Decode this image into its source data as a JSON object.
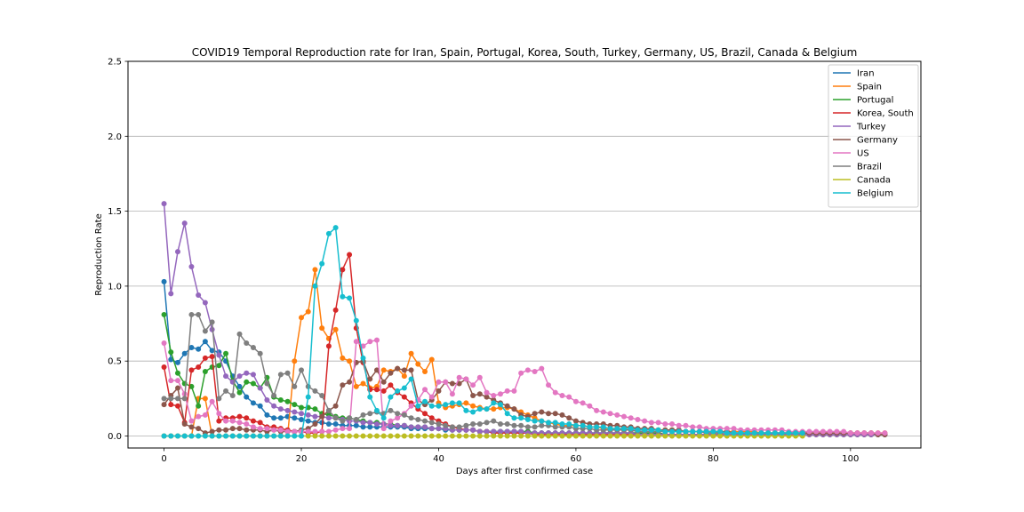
{
  "chart_data": {
    "type": "line",
    "title": "COVID19 Temporal Reproduction rate for Iran, Spain, Portugal, Korea, South, Turkey, Germany, US, Brazil, Canada & Belgium",
    "xlabel": "Days after first confirmed case",
    "ylabel": "Reproduction Rate",
    "xlim": [
      -5.25,
      110.25
    ],
    "ylim": [
      -0.08,
      2.5
    ],
    "xticks": [
      0,
      20,
      40,
      60,
      80,
      100
    ],
    "yticks": [
      0.0,
      0.5,
      1.0,
      1.5,
      2.0,
      2.5
    ],
    "xtick_labels": [
      "0",
      "20",
      "40",
      "60",
      "80",
      "100"
    ],
    "ytick_labels": [
      "0.0",
      "0.5",
      "1.0",
      "1.5",
      "2.0",
      "2.5"
    ],
    "grid": "horizontal",
    "legend_position": "top-right",
    "series": [
      {
        "name": "Iran",
        "color": "#1f77b4",
        "values": [
          1.03,
          0.51,
          0.49,
          0.55,
          0.59,
          0.58,
          0.63,
          0.57,
          0.56,
          0.5,
          0.4,
          0.33,
          0.26,
          0.22,
          0.2,
          0.14,
          0.12,
          0.12,
          0.13,
          0.12,
          0.11,
          0.1,
          0.09,
          0.09,
          0.08,
          0.08,
          0.07,
          0.07,
          0.07,
          0.06,
          0.06,
          0.06,
          0.06,
          0.06,
          0.06,
          0.06,
          0.05,
          0.05,
          0.05,
          0.05,
          0.05,
          0.04,
          0.04,
          0.04,
          0.04,
          0.04,
          0.03,
          0.03,
          0.03,
          0.03,
          0.03,
          0.03,
          0.03,
          0.03,
          0.02,
          0.02,
          0.02,
          0.02,
          0.02,
          0.02,
          0.02,
          0.02,
          0.02,
          0.02,
          0.02,
          0.02,
          0.02,
          0.02,
          0.02,
          0.02,
          0.02,
          0.02,
          0.02,
          0.01,
          0.01,
          0.01,
          0.01,
          0.01,
          0.01,
          0.01,
          0.01,
          0.01,
          0.01,
          0.01,
          0.01,
          0.01,
          0.01,
          0.01,
          0.01,
          0.01,
          0.01,
          0.01,
          0.01,
          0.01,
          0.01,
          0.01,
          0.01,
          0.01,
          0.01,
          0.01,
          0.01,
          0.01,
          0.01,
          0.01,
          0.01,
          0.01
        ]
      },
      {
        "name": "Spain",
        "color": "#ff7f0e",
        "values": [
          0,
          0,
          0,
          0,
          0,
          0.25,
          0.25,
          0.0,
          0.0,
          0.0,
          0.0,
          0.0,
          0.0,
          0.0,
          0.0,
          0.0,
          0.0,
          0.0,
          0.0,
          0.5,
          0.79,
          0.83,
          1.11,
          0.72,
          0.65,
          0.71,
          0.52,
          0.5,
          0.33,
          0.35,
          0.32,
          0.33,
          0.44,
          0.43,
          0.45,
          0.4,
          0.55,
          0.48,
          0.43,
          0.51,
          0.22,
          0.19,
          0.2,
          0.21,
          0.22,
          0.2,
          0.19,
          0.18,
          0.18,
          0.19,
          0.19,
          0.18,
          0.16,
          0.14,
          0.12,
          0.1,
          0.09,
          0.08,
          0.07,
          0.07,
          0.07,
          0.07,
          0.06,
          0.06,
          0.05,
          0.05,
          0.05,
          0.05,
          0.05,
          0.04,
          0.04,
          0.04,
          0.04,
          0.04,
          0.04,
          0.03,
          0.03,
          0.03,
          0.03,
          0.03,
          0.03,
          0.03,
          0.03,
          0.03,
          0.03,
          0.03,
          0.03,
          0.02,
          0.02,
          0.02,
          0.02,
          0.02,
          0.02,
          0.02,
          0.02,
          0.02,
          0.02,
          0.02,
          0.02,
          0.02,
          0.02,
          0.02,
          0.02,
          0.02,
          0.02,
          0.02
        ]
      },
      {
        "name": "Portugal",
        "color": "#2ca02c",
        "values": [
          0.81,
          0.56,
          0.42,
          0.35,
          0.33,
          0.2,
          0.43,
          0.46,
          0.47,
          0.55,
          0.37,
          0.29,
          0.36,
          0.35,
          0.32,
          0.39,
          0.26,
          0.24,
          0.23,
          0.21,
          0.19,
          0.19,
          0.18,
          0.15,
          0.14,
          0.13,
          0.12,
          0.12,
          0.11,
          0.1,
          0.09,
          0.09,
          0.08,
          0.08,
          0.07,
          0.07,
          0.06,
          0.06,
          0.06,
          0.05,
          0.05,
          0.05,
          0.04,
          0.04,
          0.04,
          0.04,
          0.03,
          0.03,
          0.03,
          0.03,
          0.03,
          0.03,
          0.03,
          0.03,
          0.02,
          0.02,
          0.02,
          0.02,
          0.02,
          0.02,
          0.02,
          0.02,
          0.02,
          0.02,
          0.02,
          0.02,
          0.02,
          0.02,
          0.02,
          0.02,
          0.02,
          0.02,
          0.02,
          0.01,
          0.01,
          0.01,
          0.01,
          0.01,
          0.01,
          0.01,
          0.01,
          0.01,
          0.01,
          0.01,
          0.01,
          0.01,
          0.01,
          0.01,
          0.01,
          0.01,
          0.01,
          0.01,
          0.01,
          0.01,
          0.01,
          0.01,
          0.01,
          0.01,
          0.01,
          0.01,
          0.01,
          0.01,
          0.01,
          0.01,
          0.01,
          0.01
        ]
      },
      {
        "name": "Korea, South",
        "color": "#d62728",
        "values": [
          0.46,
          0.21,
          0.2,
          0.09,
          0.44,
          0.46,
          0.52,
          0.53,
          0.1,
          0.12,
          0.12,
          0.13,
          0.12,
          0.1,
          0.09,
          0.06,
          0.06,
          0.05,
          0.04,
          0.03,
          0.03,
          0.02,
          0.02,
          0.03,
          0.6,
          0.84,
          1.11,
          1.21,
          0.72,
          0.49,
          0.31,
          0.31,
          0.3,
          0.34,
          0.29,
          0.26,
          0.22,
          0.18,
          0.15,
          0.12,
          0.1,
          0.08,
          0.06,
          0.05,
          0.04,
          0.04,
          0.03,
          0.03,
          0.02,
          0.02,
          0.02,
          0.02,
          0.02,
          0.02,
          0.01,
          0.01,
          0.01,
          0.01,
          0.01,
          0.01,
          0.01,
          0.01,
          0.01,
          0.01,
          0.01,
          0.01,
          0.01,
          0.01,
          0.01,
          0.01,
          0.01,
          0.01,
          0.01,
          0.01,
          0.01,
          0.01,
          0.01,
          0.01,
          0.01,
          0.01,
          0.01,
          0.01,
          0.01,
          0.01,
          0.01,
          0.01,
          0.01,
          0.01,
          0.01,
          0.01,
          0.01,
          0.01,
          0.01,
          0.01,
          0.01,
          0.01,
          0.01,
          0.01,
          0.01,
          0.01,
          0.01,
          0.01,
          0.01,
          0.01,
          0.01,
          0.01
        ]
      },
      {
        "name": "Turkey",
        "color": "#9467bd",
        "values": [
          1.55,
          0.95,
          1.23,
          1.42,
          1.13,
          0.94,
          0.89,
          0.71,
          0.54,
          0.4,
          0.36,
          0.4,
          0.42,
          0.41,
          0.32,
          0.24,
          0.2,
          0.18,
          0.17,
          0.16,
          0.15,
          0.14,
          0.13,
          0.13,
          0.12,
          0.12,
          0.11,
          0.1,
          0.1,
          0.09,
          0.09,
          0.08,
          0.08,
          0.07,
          0.07,
          0.07,
          0.06,
          0.06,
          0.06,
          0.05,
          0.05,
          0.05,
          0.04,
          0.04,
          0.04,
          0.04,
          0.03,
          0.03,
          0.03,
          0.03,
          0.03,
          0.03,
          0.03,
          0.02,
          0.02,
          0.02,
          0.02,
          0.02,
          0.02,
          0.02,
          0.02,
          0.02,
          0.02,
          0.02,
          0.02,
          0.02,
          0.02,
          0.02,
          0.02,
          0.01,
          0.01,
          0.01,
          0.01,
          0.01,
          0.01,
          0.01,
          0.01,
          0.01,
          0.01,
          0.01,
          0.01,
          0.01,
          0.01,
          0.01,
          0.01,
          0.01,
          0.01,
          0.01,
          0.01,
          0.01,
          0.01,
          0.01,
          0.01,
          0.01,
          0.01,
          0.01,
          0.01,
          0.01,
          0.01,
          0.01,
          0.01,
          0.01,
          0.01,
          0.01,
          0.01,
          0.01
        ]
      },
      {
        "name": "Germany",
        "color": "#8c564b",
        "values": [
          0.21,
          0.27,
          0.32,
          0.08,
          0.06,
          0.05,
          0.02,
          0.03,
          0.04,
          0.04,
          0.05,
          0.05,
          0.04,
          0.04,
          0.04,
          0.03,
          0.04,
          0.03,
          0.03,
          0.03,
          0.04,
          0.05,
          0.08,
          0.13,
          0.17,
          0.2,
          0.34,
          0.36,
          0.49,
          0.5,
          0.38,
          0.44,
          0.36,
          0.42,
          0.45,
          0.44,
          0.44,
          0.24,
          0.21,
          0.24,
          0.3,
          0.36,
          0.35,
          0.35,
          0.38,
          0.27,
          0.28,
          0.26,
          0.24,
          0.22,
          0.2,
          0.18,
          0.14,
          0.13,
          0.15,
          0.16,
          0.15,
          0.15,
          0.14,
          0.12,
          0.1,
          0.09,
          0.08,
          0.08,
          0.08,
          0.07,
          0.07,
          0.06,
          0.06,
          0.05,
          0.05,
          0.05,
          0.04,
          0.04,
          0.04,
          0.04,
          0.03,
          0.03,
          0.03,
          0.03,
          0.03,
          0.03,
          0.03,
          0.02,
          0.02,
          0.02,
          0.02,
          0.02,
          0.02,
          0.02,
          0.02,
          0.02,
          0.02,
          0.02,
          0.02,
          0.02,
          0.02,
          0.02,
          0.02,
          0.02,
          0.02,
          0.02,
          0.02,
          0.02,
          0.01,
          0.01
        ]
      },
      {
        "name": "US",
        "color": "#e377c2",
        "values": [
          0.62,
          0.37,
          0.37,
          0.28,
          0.1,
          0.13,
          0.14,
          0.23,
          0.15,
          0.1,
          0.1,
          0.09,
          0.08,
          0.06,
          0.05,
          0.05,
          0.04,
          0.04,
          0.03,
          0.03,
          0.03,
          0.03,
          0.03,
          0.03,
          0.03,
          0.04,
          0.05,
          0.05,
          0.63,
          0.6,
          0.63,
          0.64,
          0.05,
          0.1,
          0.12,
          0.15,
          0.2,
          0.24,
          0.31,
          0.26,
          0.36,
          0.36,
          0.28,
          0.39,
          0.38,
          0.34,
          0.39,
          0.29,
          0.27,
          0.28,
          0.3,
          0.3,
          0.42,
          0.44,
          0.43,
          0.45,
          0.34,
          0.29,
          0.27,
          0.26,
          0.23,
          0.22,
          0.2,
          0.17,
          0.16,
          0.15,
          0.14,
          0.13,
          0.12,
          0.11,
          0.1,
          0.09,
          0.09,
          0.08,
          0.08,
          0.07,
          0.07,
          0.06,
          0.06,
          0.05,
          0.05,
          0.05,
          0.05,
          0.05,
          0.04,
          0.04,
          0.04,
          0.04,
          0.04,
          0.04,
          0.04,
          0.03,
          0.03,
          0.03,
          0.03,
          0.03,
          0.03,
          0.03,
          0.03,
          0.03,
          0.02,
          0.02,
          0.02,
          0.02,
          0.02,
          0.02
        ]
      },
      {
        "name": "Brazil",
        "color": "#7f7f7f",
        "values": [
          0.25,
          0.25,
          0.25,
          0.25,
          0.81,
          0.81,
          0.7,
          0.76,
          0.25,
          0.3,
          0.27,
          0.68,
          0.62,
          0.59,
          0.55,
          0.35,
          0.27,
          0.41,
          0.42,
          0.33,
          0.44,
          0.33,
          0.3,
          0.27,
          0.17,
          0.12,
          0.1,
          0.12,
          0.11,
          0.14,
          0.15,
          0.16,
          0.15,
          0.17,
          0.15,
          0.14,
          0.12,
          0.11,
          0.1,
          0.09,
          0.08,
          0.07,
          0.06,
          0.06,
          0.07,
          0.08,
          0.08,
          0.09,
          0.1,
          0.08,
          0.08,
          0.07,
          0.07,
          0.06,
          0.06,
          0.07,
          0.07,
          0.06,
          0.06,
          0.06,
          0.05,
          0.05,
          0.05,
          0.04,
          0.04,
          0.04,
          0.04,
          0.04,
          0.04,
          0.03,
          0.03,
          0.03,
          0.03,
          0.03,
          0.03,
          0.03,
          0.03,
          0.03,
          0.03,
          0.02,
          0.02,
          0.02,
          0.02,
          0.02,
          0.02,
          0.02,
          0.02,
          0.02,
          0.02,
          0.02,
          0.02,
          0.02,
          0.02,
          0.02
        ]
      },
      {
        "name": "Canada",
        "color": "#bcbd22",
        "values": [
          0,
          0,
          0,
          0,
          0,
          0,
          0,
          0,
          0,
          0,
          0,
          0,
          0,
          0,
          0,
          0,
          0,
          0,
          0,
          0,
          0,
          0,
          0,
          0,
          0,
          0,
          0,
          0,
          0,
          0,
          0,
          0,
          0,
          0,
          0,
          0,
          0,
          0,
          0,
          0,
          0,
          0,
          0,
          0,
          0,
          0,
          0,
          0,
          0,
          0,
          0,
          0,
          0,
          0,
          0,
          0,
          0,
          0,
          0,
          0,
          0,
          0,
          0,
          0,
          0,
          0,
          0,
          0,
          0,
          0,
          0,
          0,
          0,
          0,
          0,
          0,
          0,
          0,
          0,
          0,
          0,
          0,
          0,
          0,
          0,
          0,
          0,
          0,
          0,
          0,
          0,
          0,
          0,
          0
        ]
      },
      {
        "name": "Belgium",
        "color": "#17becf",
        "values": [
          0,
          0,
          0,
          0,
          0,
          0,
          0,
          0,
          0,
          0,
          0,
          0,
          0,
          0,
          0,
          0,
          0,
          0,
          0,
          0,
          0,
          0.26,
          1.0,
          1.15,
          1.35,
          1.39,
          0.93,
          0.92,
          0.77,
          0.52,
          0.26,
          0.17,
          0.12,
          0.26,
          0.3,
          0.32,
          0.38,
          0.2,
          0.23,
          0.2,
          0.2,
          0.21,
          0.22,
          0.22,
          0.17,
          0.16,
          0.18,
          0.18,
          0.22,
          0.21,
          0.15,
          0.12,
          0.12,
          0.11,
          0.1,
          0.1,
          0.09,
          0.09,
          0.08,
          0.08,
          0.07,
          0.07,
          0.06,
          0.06,
          0.06,
          0.05,
          0.05,
          0.05,
          0.05,
          0.04,
          0.04,
          0.04,
          0.04,
          0.03,
          0.03,
          0.03,
          0.03,
          0.03,
          0.03,
          0.03,
          0.03,
          0.03,
          0.02,
          0.02,
          0.02,
          0.02,
          0.02,
          0.02,
          0.02,
          0.02,
          0.02,
          0.02,
          0.02,
          0.02
        ]
      }
    ]
  }
}
